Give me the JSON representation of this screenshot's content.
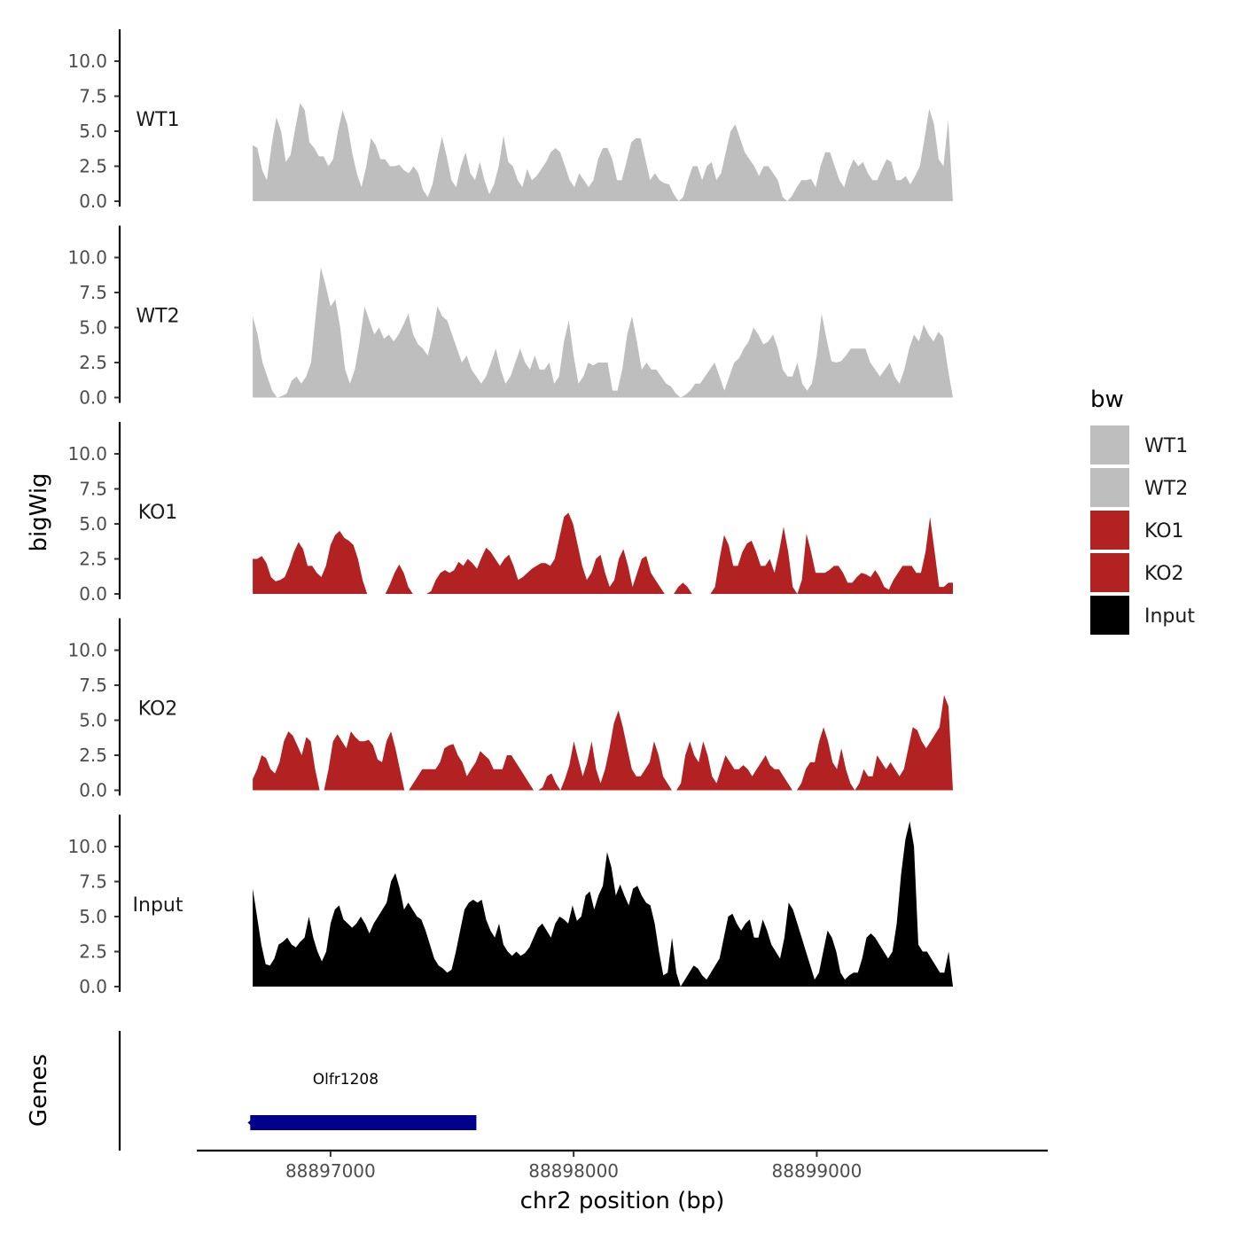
{
  "chart_data": {
    "type": "area",
    "ylabel": "bigWig",
    "xlabel": "chr2 position (bp)",
    "xlim": [
      88896450,
      88899950
    ],
    "data_range": [
      88896680,
      88899560
    ],
    "ylim": [
      0,
      12
    ],
    "y_ticks": [
      "0.0",
      "2.5",
      "5.0",
      "7.5",
      "10.0"
    ],
    "y_tick_values": [
      0,
      2.5,
      5,
      7.5,
      10
    ],
    "x_ticks": [
      "88897000",
      "88898000",
      "88899000"
    ],
    "x_tick_values": [
      88897000,
      88898000,
      88899000
    ],
    "series": [
      {
        "name": "WT1",
        "color": "#BEBEBE",
        "values": [
          4.0,
          3.8,
          2.2,
          1.5,
          4.0,
          6.0,
          5.0,
          2.8,
          3.3,
          5.2,
          7.0,
          6.5,
          4.2,
          3.8,
          3.2,
          3.2,
          2.5,
          3.0,
          5.0,
          6.5,
          5.5,
          3.5,
          2.0,
          1.0,
          2.5,
          4.5,
          4.0,
          3.0,
          3.0,
          2.5,
          2.5,
          2.6,
          2.2,
          2.0,
          2.5,
          2.0,
          0.8,
          0.3,
          1.2,
          3.0,
          4.6,
          3.2,
          1.5,
          1.0,
          2.5,
          3.5,
          2.0,
          1.5,
          2.8,
          1.5,
          0.5,
          1.2,
          2.5,
          4.7,
          2.8,
          2.5,
          1.5,
          1.0,
          2.3,
          1.5,
          1.8,
          2.3,
          2.8,
          3.5,
          3.8,
          3.5,
          2.5,
          1.5,
          1.0,
          2.0,
          1.5,
          1.0,
          1.5,
          3.0,
          3.8,
          3.8,
          3.0,
          1.5,
          1.5,
          2.8,
          4.2,
          4.5,
          4.5,
          3.0,
          1.5,
          2.0,
          1.5,
          1.3,
          1.2,
          0.5,
          0.0,
          0.3,
          1.5,
          2.5,
          2.5,
          1.5,
          2.5,
          2.8,
          1.5,
          2.0,
          3.5,
          5.0,
          5.5,
          4.5,
          3.5,
          3.0,
          2.5,
          1.8,
          2.5,
          2.5,
          2.0,
          1.5,
          0.3,
          0.0,
          0.4,
          1.0,
          1.5,
          1.5,
          1.6,
          1.0,
          2.5,
          3.5,
          3.5,
          2.5,
          1.5,
          1.0,
          2.2,
          3.0,
          2.5,
          2.8,
          2.0,
          1.5,
          1.5,
          2.3,
          3.0,
          2.8,
          1.5,
          1.5,
          1.8,
          1.2,
          1.8,
          2.5,
          4.5,
          6.6,
          5.5,
          3.0,
          2.5,
          5.8,
          0.0
        ]
      },
      {
        "name": "WT2",
        "color": "#BEBEBE",
        "values": [
          5.8,
          4.5,
          2.5,
          1.5,
          0.5,
          0.0,
          0.1,
          0.3,
          1.2,
          1.5,
          1.0,
          1.5,
          2.5,
          6.0,
          9.3,
          8.0,
          6.5,
          7.0,
          5.0,
          2.0,
          1.0,
          2.0,
          4.0,
          6.5,
          5.5,
          4.5,
          5.0,
          4.2,
          4.5,
          4.0,
          4.5,
          5.2,
          6.0,
          4.5,
          3.8,
          3.5,
          3.0,
          4.5,
          6.5,
          5.8,
          5.5,
          4.5,
          3.5,
          2.5,
          3.0,
          2.0,
          1.5,
          1.0,
          1.5,
          2.5,
          3.5,
          2.0,
          1.0,
          1.5,
          2.5,
          3.5,
          2.5,
          2.0,
          3.0,
          2.0,
          2.0,
          2.5,
          1.0,
          1.5,
          4.0,
          5.5,
          3.0,
          1.0,
          1.5,
          2.5,
          2.3,
          2.5,
          2.5,
          2.5,
          0.5,
          0.5,
          2.0,
          4.5,
          5.8,
          4.0,
          2.0,
          2.5,
          2.0,
          2.0,
          1.5,
          1.0,
          0.8,
          0.3,
          0.0,
          0.2,
          0.5,
          1.0,
          1.0,
          1.5,
          2.0,
          2.5,
          1.5,
          0.5,
          1.5,
          2.5,
          2.8,
          3.5,
          4.0,
          5.0,
          4.5,
          3.8,
          4.0,
          4.5,
          3.5,
          2.0,
          1.5,
          1.5,
          2.5,
          1.0,
          0.5,
          1.0,
          3.0,
          6.0,
          4.2,
          2.6,
          2.5,
          2.6,
          3.0,
          3.5,
          3.5,
          3.5,
          3.5,
          2.5,
          2.0,
          1.5,
          2.0,
          2.5,
          1.5,
          1.0,
          2.0,
          3.5,
          4.5,
          4.0,
          5.2,
          4.5,
          4.0,
          4.7,
          4.3,
          2.0,
          0.0
        ]
      },
      {
        "name": "KO1",
        "color": "#B22222",
        "values": [
          2.5,
          2.5,
          2.7,
          2.2,
          1.2,
          0.9,
          1.0,
          1.2,
          2.0,
          3.0,
          3.7,
          3.2,
          2.0,
          2.0,
          1.5,
          1.2,
          2.0,
          3.5,
          4.2,
          4.5,
          4.0,
          3.8,
          3.5,
          2.5,
          1.0,
          0.0,
          0.0,
          0.0,
          0.0,
          0.0,
          0.7,
          1.5,
          2.1,
          1.5,
          0.5,
          0.0,
          0.0,
          0.0,
          0.0,
          0.2,
          1.0,
          1.5,
          1.7,
          1.5,
          1.7,
          2.3,
          2.0,
          2.5,
          2.2,
          1.8,
          2.6,
          3.3,
          3.0,
          2.5,
          2.0,
          2.5,
          2.8,
          2.0,
          1.0,
          1.2,
          1.5,
          1.8,
          2.0,
          2.2,
          2.2,
          2.0,
          2.5,
          4.0,
          5.5,
          5.8,
          5.0,
          3.5,
          2.0,
          1.0,
          1.5,
          2.5,
          2.8,
          1.5,
          0.5,
          1.0,
          2.5,
          3.2,
          2.0,
          0.5,
          1.5,
          2.5,
          2.7,
          1.5,
          1.0,
          0.5,
          0.0,
          0.0,
          0.0,
          0.5,
          0.8,
          0.5,
          0.0,
          0.0,
          0.0,
          0.0,
          0.0,
          0.5,
          2.5,
          4.2,
          3.5,
          2.0,
          2.0,
          3.0,
          3.6,
          3.8,
          3.0,
          2.0,
          2.0,
          2.5,
          1.5,
          3.0,
          4.8,
          3.0,
          0.5,
          0.0,
          1.0,
          4.3,
          3.0,
          1.5,
          1.5,
          1.5,
          1.7,
          2.0,
          2.0,
          1.5,
          0.8,
          0.8,
          1.2,
          1.5,
          1.4,
          1.2,
          1.7,
          1.2,
          0.5,
          0.3,
          1.0,
          1.5,
          2.0,
          2.0,
          2.0,
          1.5,
          1.5,
          3.0,
          5.5,
          3.0,
          0.5,
          0.5,
          0.8,
          0.8
        ]
      },
      {
        "name": "KO2",
        "color": "#B22222",
        "values": [
          0.8,
          1.5,
          2.5,
          2.3,
          1.5,
          1.2,
          2.0,
          3.5,
          4.2,
          3.9,
          3.2,
          2.5,
          3.8,
          3.5,
          1.5,
          0.0,
          0.0,
          1.5,
          3.5,
          4.0,
          3.5,
          3.0,
          4.2,
          3.8,
          3.5,
          3.5,
          3.6,
          3.2,
          2.2,
          2.0,
          3.5,
          4.2,
          3.0,
          1.5,
          0.0,
          0.0,
          0.5,
          1.0,
          1.5,
          1.5,
          1.5,
          1.5,
          2.0,
          3.0,
          3.2,
          3.3,
          2.5,
          2.0,
          1.0,
          1.5,
          2.0,
          2.8,
          2.5,
          2.2,
          1.5,
          1.5,
          1.5,
          2.5,
          2.5,
          2.0,
          1.5,
          1.0,
          0.5,
          0.0,
          0.0,
          0.2,
          1.0,
          1.2,
          0.5,
          0.0,
          0.8,
          1.8,
          3.5,
          2.2,
          1.0,
          2.0,
          3.5,
          1.5,
          0.5,
          1.5,
          3.0,
          4.8,
          5.7,
          4.5,
          3.0,
          1.5,
          1.0,
          1.0,
          1.5,
          2.0,
          3.5,
          2.5,
          1.0,
          0.5,
          0.0,
          0.0,
          0.5,
          2.5,
          3.5,
          2.5,
          2.0,
          3.5,
          2.5,
          1.0,
          0.5,
          1.5,
          2.5,
          2.0,
          1.5,
          1.5,
          1.8,
          1.5,
          1.0,
          1.5,
          2.0,
          2.5,
          1.8,
          1.5,
          1.5,
          1.0,
          0.5,
          0.0,
          0.0,
          0.5,
          1.5,
          2.0,
          2.0,
          3.5,
          4.5,
          3.5,
          2.0,
          1.5,
          3.0,
          1.5,
          0.5,
          0.0,
          0.5,
          1.5,
          1.0,
          1.0,
          2.5,
          2.0,
          1.5,
          2.0,
          1.5,
          1.0,
          1.5,
          3.0,
          4.5,
          4.3,
          3.5,
          3.0,
          3.5,
          4.0,
          4.5,
          6.8,
          6.0,
          0.0
        ]
      },
      {
        "name": "Input",
        "color": "#000000",
        "values": [
          7.0,
          5.0,
          3.0,
          1.6,
          1.5,
          2.0,
          3.0,
          3.2,
          3.5,
          3.0,
          2.8,
          3.2,
          3.5,
          5.0,
          3.5,
          2.5,
          1.8,
          2.5,
          4.5,
          5.5,
          5.8,
          4.8,
          4.5,
          4.2,
          4.5,
          5.0,
          4.5,
          3.8,
          4.5,
          5.0,
          5.5,
          6.0,
          7.5,
          8.1,
          7.0,
          5.5,
          6.0,
          5.5,
          5.0,
          4.8,
          4.0,
          3.0,
          2.0,
          1.5,
          1.3,
          1.0,
          1.2,
          2.5,
          4.0,
          5.5,
          6.0,
          6.2,
          6.0,
          6.2,
          4.8,
          4.0,
          3.5,
          4.5,
          3.0,
          2.5,
          2.2,
          2.5,
          2.2,
          2.4,
          2.8,
          3.5,
          4.2,
          4.5,
          4.0,
          3.5,
          4.5,
          5.0,
          4.8,
          4.5,
          5.8,
          4.7,
          5.0,
          6.5,
          6.8,
          5.5,
          6.5,
          7.2,
          9.6,
          8.5,
          6.5,
          7.3,
          6.5,
          5.8,
          7.0,
          7.2,
          6.5,
          6.0,
          5.8,
          4.5,
          2.5,
          0.8,
          1.0,
          3.5,
          1.0,
          0.0,
          0.5,
          1.0,
          1.5,
          1.3,
          0.8,
          0.5,
          1.0,
          1.5,
          2.0,
          3.5,
          5.0,
          5.2,
          4.5,
          4.0,
          4.5,
          4.8,
          3.5,
          3.5,
          4.8,
          4.0,
          3.0,
          2.5,
          2.0,
          3.5,
          6.0,
          5.5,
          4.5,
          3.5,
          2.5,
          1.5,
          0.5,
          1.0,
          2.5,
          4.0,
          3.5,
          2.5,
          1.0,
          0.5,
          0.8,
          1.0,
          1.0,
          2.0,
          3.5,
          3.8,
          3.5,
          3.0,
          2.5,
          2.0,
          2.5,
          4.5,
          8.0,
          10.5,
          11.8,
          10.0,
          3.0,
          2.5,
          2.5,
          2.0,
          1.5,
          1.0,
          1.0,
          2.5,
          0.0
        ]
      }
    ],
    "legend": {
      "title": "bw",
      "entries": [
        "WT1",
        "WT2",
        "KO1",
        "KO2",
        "Input"
      ],
      "placement": "right"
    },
    "gene_track": {
      "ylabel": "Genes",
      "genes": [
        {
          "name": "Olfr1208",
          "start": 88896670,
          "end": 88897600,
          "strand": "-",
          "color": "#00008B"
        }
      ]
    }
  }
}
